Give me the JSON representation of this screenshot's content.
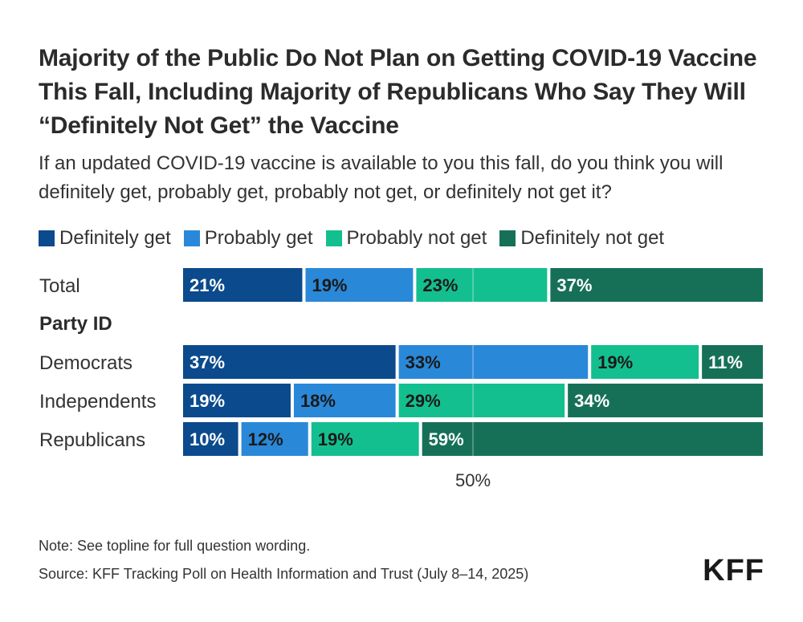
{
  "title": "Majority of the Public Do Not Plan on Getting COVID-19 Vaccine This Fall, Including Majority of Republicans Who Say They Will “Definitely Not Get” the Vaccine",
  "subtitle": "If an updated COVID-19 vaccine is available to you this fall, do you think you will definitely get, probably get, probably not get, or definitely not get it?",
  "legend": [
    {
      "label": "Definitely get",
      "color": "#0b4a8c"
    },
    {
      "label": "Probably get",
      "color": "#2a88d8"
    },
    {
      "label": "Probably not get",
      "color": "#14bf8f"
    },
    {
      "label": "Definitely not get",
      "color": "#167058"
    }
  ],
  "note": "Note: See topline for full question wording.",
  "source": "Source: KFF Tracking Poll on Health Information and Trust (July 8–14, 2025)",
  "logo": "KFF",
  "chart_data": {
    "type": "bar",
    "orientation": "horizontal",
    "stacked": true,
    "xlim": [
      0,
      100
    ],
    "midline_label": "50%",
    "series": [
      {
        "name": "Definitely get",
        "color": "#0b4a8c",
        "text_color": "#ffffff"
      },
      {
        "name": "Probably get",
        "color": "#2a88d8",
        "text_color": "#1a1a1a"
      },
      {
        "name": "Probably not get",
        "color": "#14bf8f",
        "text_color": "#1a1a1a"
      },
      {
        "name": "Definitely not get",
        "color": "#167058",
        "text_color": "#ffffff"
      }
    ],
    "rows": [
      {
        "label": "Total",
        "values": [
          21,
          19,
          23,
          37
        ],
        "labels": [
          "21%",
          "19%",
          "23%",
          "37%"
        ]
      },
      {
        "group": "Party ID"
      },
      {
        "label": "Democrats",
        "values": [
          37,
          33,
          19,
          11
        ],
        "labels": [
          "37%",
          "33%",
          "19%",
          "11%"
        ]
      },
      {
        "label": "Independents",
        "values": [
          19,
          18,
          29,
          34
        ],
        "labels": [
          "19%",
          "18%",
          "29%",
          "34%"
        ]
      },
      {
        "label": "Republicans",
        "values": [
          10,
          12,
          19,
          59
        ],
        "labels": [
          "10%",
          "12%",
          "19%",
          "59%"
        ]
      }
    ]
  }
}
